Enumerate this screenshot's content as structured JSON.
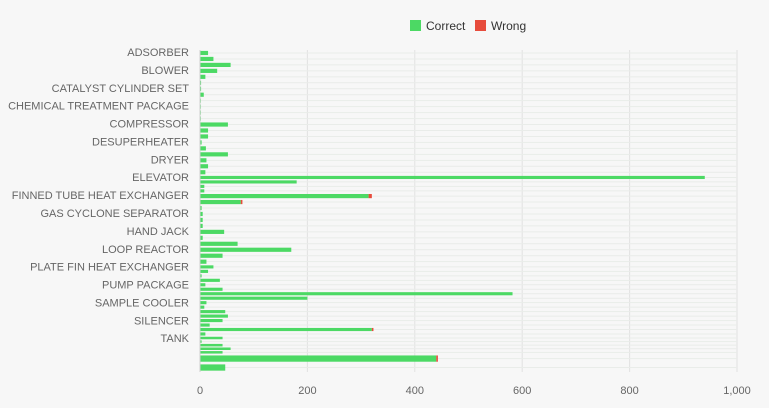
{
  "chart_data": {
    "type": "bar",
    "orientation": "horizontal",
    "stacked": true,
    "xlim": [
      0,
      1000
    ],
    "xticks": [
      "0",
      "200",
      "400",
      "600",
      "800",
      "1,000"
    ],
    "grid": true,
    "legend_position": "top",
    "series": [
      {
        "name": "Correct",
        "color": "#4cd964"
      },
      {
        "name": "Wrong",
        "color": "#e74c3c"
      }
    ],
    "categories": [
      {
        "label": "ADSORBER",
        "bars": [
          [
            15,
            0
          ],
          [
            25,
            0
          ],
          [
            57,
            0
          ]
        ]
      },
      {
        "label": "BLOWER",
        "bars": [
          [
            32,
            0
          ],
          [
            10,
            0
          ],
          [
            2,
            0
          ]
        ]
      },
      {
        "label": "CATALYST CYLINDER SET",
        "bars": [
          [
            2,
            0
          ],
          [
            7,
            0
          ],
          [
            1,
            0
          ]
        ]
      },
      {
        "label": "CHEMICAL TREATMENT PACKAGE",
        "bars": [
          [
            1,
            0
          ],
          [
            1,
            0
          ],
          [
            1,
            0
          ]
        ]
      },
      {
        "label": "COMPRESSOR",
        "bars": [
          [
            52,
            0
          ],
          [
            15,
            0
          ],
          [
            15,
            0
          ]
        ]
      },
      {
        "label": "DESUPERHEATER",
        "bars": [
          [
            3,
            0
          ],
          [
            11,
            0
          ],
          [
            52,
            0
          ]
        ]
      },
      {
        "label": "DRYER",
        "bars": [
          [
            12,
            0
          ],
          [
            15,
            0
          ],
          [
            10,
            0
          ]
        ]
      },
      {
        "label": "ELEVATOR",
        "bars": [
          [
            940,
            0
          ],
          [
            180,
            0
          ],
          [
            8,
            0
          ],
          [
            8,
            0
          ]
        ]
      },
      {
        "label": "FINNED TUBE HEAT EXCHANGER",
        "bars": [
          [
            314,
            6
          ],
          [
            76,
            3
          ],
          [
            3,
            0
          ]
        ]
      },
      {
        "label": "GAS CYCLONE SEPARATOR",
        "bars": [
          [
            5,
            0
          ],
          [
            5,
            0
          ],
          [
            5,
            0
          ]
        ]
      },
      {
        "label": "HAND JACK",
        "bars": [
          [
            45,
            0
          ],
          [
            5,
            0
          ],
          [
            70,
            0
          ]
        ]
      },
      {
        "label": "LOOP REACTOR",
        "bars": [
          [
            170,
            0
          ],
          [
            42,
            0
          ],
          [
            12,
            0
          ]
        ]
      },
      {
        "label": "PLATE FIN HEAT EXCHANGER",
        "bars": [
          [
            25,
            0
          ],
          [
            15,
            0
          ],
          [
            3,
            0
          ],
          [
            37,
            0
          ]
        ]
      },
      {
        "label": "PUMP PACKAGE",
        "bars": [
          [
            10,
            0
          ],
          [
            42,
            0
          ],
          [
            582,
            0
          ],
          [
            200,
            0
          ]
        ]
      },
      {
        "label": "SAMPLE COOLER",
        "bars": [
          [
            12,
            0
          ],
          [
            8,
            0
          ],
          [
            47,
            0
          ],
          [
            52,
            0
          ]
        ]
      },
      {
        "label": "SILENCER",
        "bars": [
          [
            42,
            0
          ],
          [
            18,
            0
          ],
          [
            320,
            3
          ],
          [
            10,
            0
          ]
        ]
      },
      {
        "label": "TANK",
        "bars": [
          [
            42,
            0
          ],
          [
            3,
            0
          ],
          [
            42,
            0
          ],
          [
            57,
            0
          ],
          [
            42,
            0
          ]
        ]
      },
      {
        "label": "",
        "bars": [
          [
            440,
            3
          ],
          [
            47,
            0
          ]
        ]
      }
    ]
  }
}
